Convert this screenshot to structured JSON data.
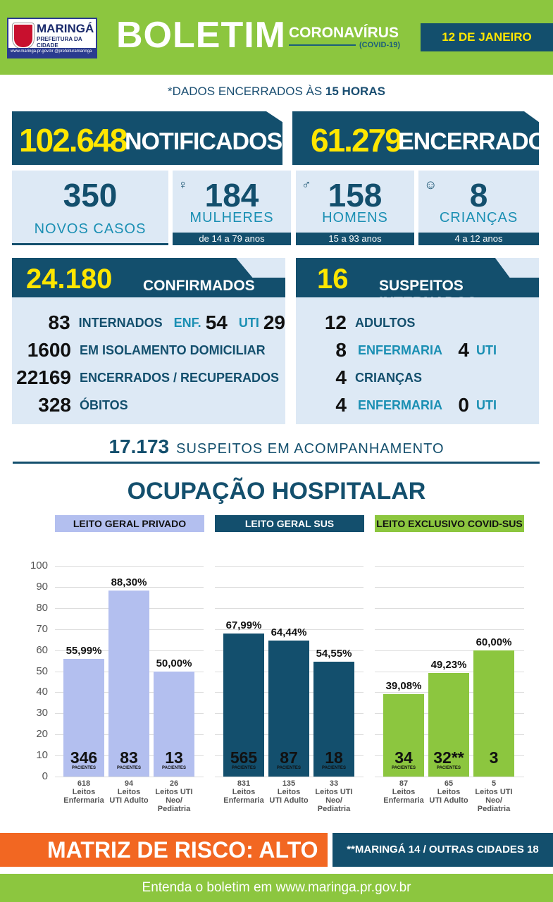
{
  "header": {
    "city": "MARINGÁ",
    "city_sub": "PREFEITURA DA CIDADE",
    "city_foot": "www.maringa.pr.gov.br  @prefeituramaringa",
    "title": "BOLETIM",
    "subtitle": "CORONAVÍRUS",
    "subtitle2": "(COVID-19)",
    "date": "12 DE JANEIRO"
  },
  "dados": {
    "prefix": "*DADOS ENCERRADOS ÀS ",
    "hour": "15 HORAS"
  },
  "notificados": {
    "value": "102.648",
    "label": "NOTIFICADOS"
  },
  "encerrados": {
    "value": "61.279",
    "label": "ENCERRADOS"
  },
  "novos": {
    "value": "350",
    "label": "NOVOS CASOS"
  },
  "mulheres": {
    "value": "184",
    "label": "MULHERES",
    "age": "de 14 a 79 anos",
    "icon": "woman-icon"
  },
  "homens": {
    "value": "158",
    "label": "HOMENS",
    "age": "15 a 93 anos",
    "icon": "man-icon"
  },
  "criancas": {
    "value": "8",
    "label": "CRIANÇAS",
    "age": "4 a 12 anos",
    "icon": "baby-icon"
  },
  "confirmados": {
    "value": "24.180",
    "label": "CONFIRMADOS",
    "rows": [
      {
        "n": "83",
        "label": "INTERNADOS",
        "enf_label": "ENF.",
        "enf": "54",
        "uti_label": "UTI",
        "uti": "29"
      },
      {
        "n": "1600",
        "label": "EM ISOLAMENTO DOMICILIAR"
      },
      {
        "n": "22169",
        "label": "ENCERRADOS / RECUPERADOS"
      },
      {
        "n": "328",
        "label": "ÓBITOS"
      }
    ]
  },
  "suspeitos_int": {
    "value": "16",
    "label": "SUSPEITOS INTERNADOS",
    "rows": [
      {
        "n": "12",
        "label": "ADULTOS"
      },
      {
        "n": "8",
        "label": "ENFERMARIA",
        "n2": "4",
        "label2": "UTI"
      },
      {
        "n": "4",
        "label": "CRIANÇAS"
      },
      {
        "n": "4",
        "label": "ENFERMARIA",
        "n2": "0",
        "label2": "UTI"
      }
    ]
  },
  "acompanhamento": {
    "value": "17.173",
    "label": "SUSPEITOS EM ACOMPANHAMENTO"
  },
  "ocupacao": {
    "title": "OCUPAÇÃO HOSPITALAR"
  },
  "chart_data": {
    "type": "bar",
    "ylim": [
      0,
      100
    ],
    "yticks": [
      "0",
      "10",
      "20",
      "30",
      "40",
      "50",
      "60",
      "70",
      "80",
      "90",
      "100"
    ],
    "groups": [
      {
        "name": "LEITO GERAL PRIVADO",
        "color": "#b3bfef",
        "bars": [
          {
            "pct_label": "55,99%",
            "value": 55.99,
            "patients": "346",
            "capacity": "618",
            "label": [
              "Leitos",
              "Enfermaria"
            ]
          },
          {
            "pct_label": "88,30%",
            "value": 88.3,
            "patients": "83",
            "capacity": "94",
            "label": [
              "Leitos",
              "UTI Adulto"
            ]
          },
          {
            "pct_label": "50,00%",
            "value": 50.0,
            "patients": "13",
            "capacity": "26",
            "label": [
              "Leitos UTI",
              "Neo/",
              "Pediatria"
            ]
          }
        ]
      },
      {
        "name": "LEITO GERAL SUS",
        "color": "#134f6d",
        "bars": [
          {
            "pct_label": "67,99%",
            "value": 67.99,
            "patients": "565",
            "capacity": "831",
            "label": [
              "Leitos",
              "Enfermaria"
            ]
          },
          {
            "pct_label": "64,44%",
            "value": 64.44,
            "patients": "87",
            "capacity": "135",
            "label": [
              "Leitos",
              "UTI Adulto"
            ]
          },
          {
            "pct_label": "54,55%",
            "value": 54.55,
            "patients": "18",
            "capacity": "33",
            "label": [
              "Leitos UTI",
              "Neo/",
              "Pediatria"
            ]
          }
        ]
      },
      {
        "name": "LEITO EXCLUSIVO COVID-SUS",
        "color": "#8cc63f",
        "bars": [
          {
            "pct_label": "39,08%",
            "value": 39.08,
            "patients": "34",
            "capacity": "87",
            "label": [
              "Leitos",
              "Enfermaria"
            ]
          },
          {
            "pct_label": "49,23%",
            "value": 49.23,
            "patients": "32**",
            "capacity": "65",
            "label": [
              "Leitos",
              "UTI Adulto"
            ]
          },
          {
            "pct_label": "60,00%",
            "value": 60.0,
            "patients": "3",
            "capacity": "5",
            "label": [
              "Leitos UTI",
              "Neo/",
              "Pediatria"
            ]
          }
        ]
      }
    ],
    "patients_word": "PACIENTES"
  },
  "risco": {
    "label": "MATRIZ DE RISCO: ALTO"
  },
  "nota": {
    "label": "**MARINGÁ 14 / OUTRAS CIDADES 18"
  },
  "footer": {
    "text": "Entenda o boletim em www.maringa.pr.gov.br"
  }
}
